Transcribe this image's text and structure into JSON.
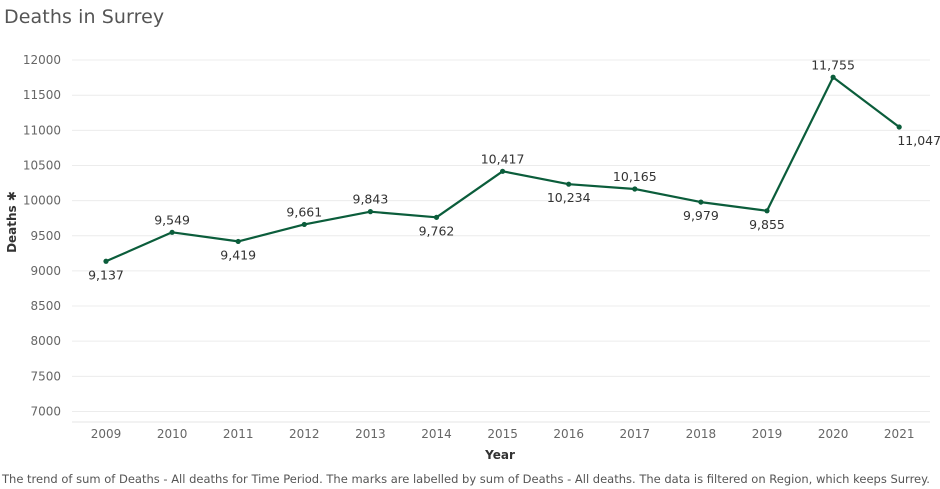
{
  "chart_data": {
    "type": "line",
    "title": "Deaths in Surrey",
    "xlabel": "Year",
    "ylabel": "Deaths ✱",
    "x": [
      "2009",
      "2010",
      "2011",
      "2012",
      "2013",
      "2014",
      "2015",
      "2016",
      "2017",
      "2018",
      "2019",
      "2020",
      "2021"
    ],
    "series": [
      {
        "values": [
          9137,
          9549,
          9419,
          9661,
          9843,
          9762,
          10417,
          10234,
          10165,
          9979,
          9855,
          11755,
          11047
        ]
      }
    ],
    "data_labels": [
      "9,137",
      "9,549",
      "9,419",
      "9,661",
      "9,843",
      "9,762",
      "10,417",
      "10,234",
      "10,165",
      "9,979",
      "9,855",
      "11,755",
      "11,047"
    ],
    "label_positions": [
      "below",
      "above",
      "below",
      "above",
      "above",
      "below",
      "above",
      "below",
      "above",
      "below",
      "below",
      "above",
      "below"
    ],
    "y_ticks": [
      7000,
      7500,
      8000,
      8500,
      9000,
      9500,
      10000,
      10500,
      11000,
      11500,
      12000
    ],
    "ylim": [
      6850,
      12200
    ],
    "grid": true,
    "line_color": "#0b5d3b"
  },
  "caption": "The trend of sum of Deaths - All deaths for Time Period.  The marks are labelled by sum of Deaths - All deaths. The data is filtered on Region, which keeps Surrey."
}
